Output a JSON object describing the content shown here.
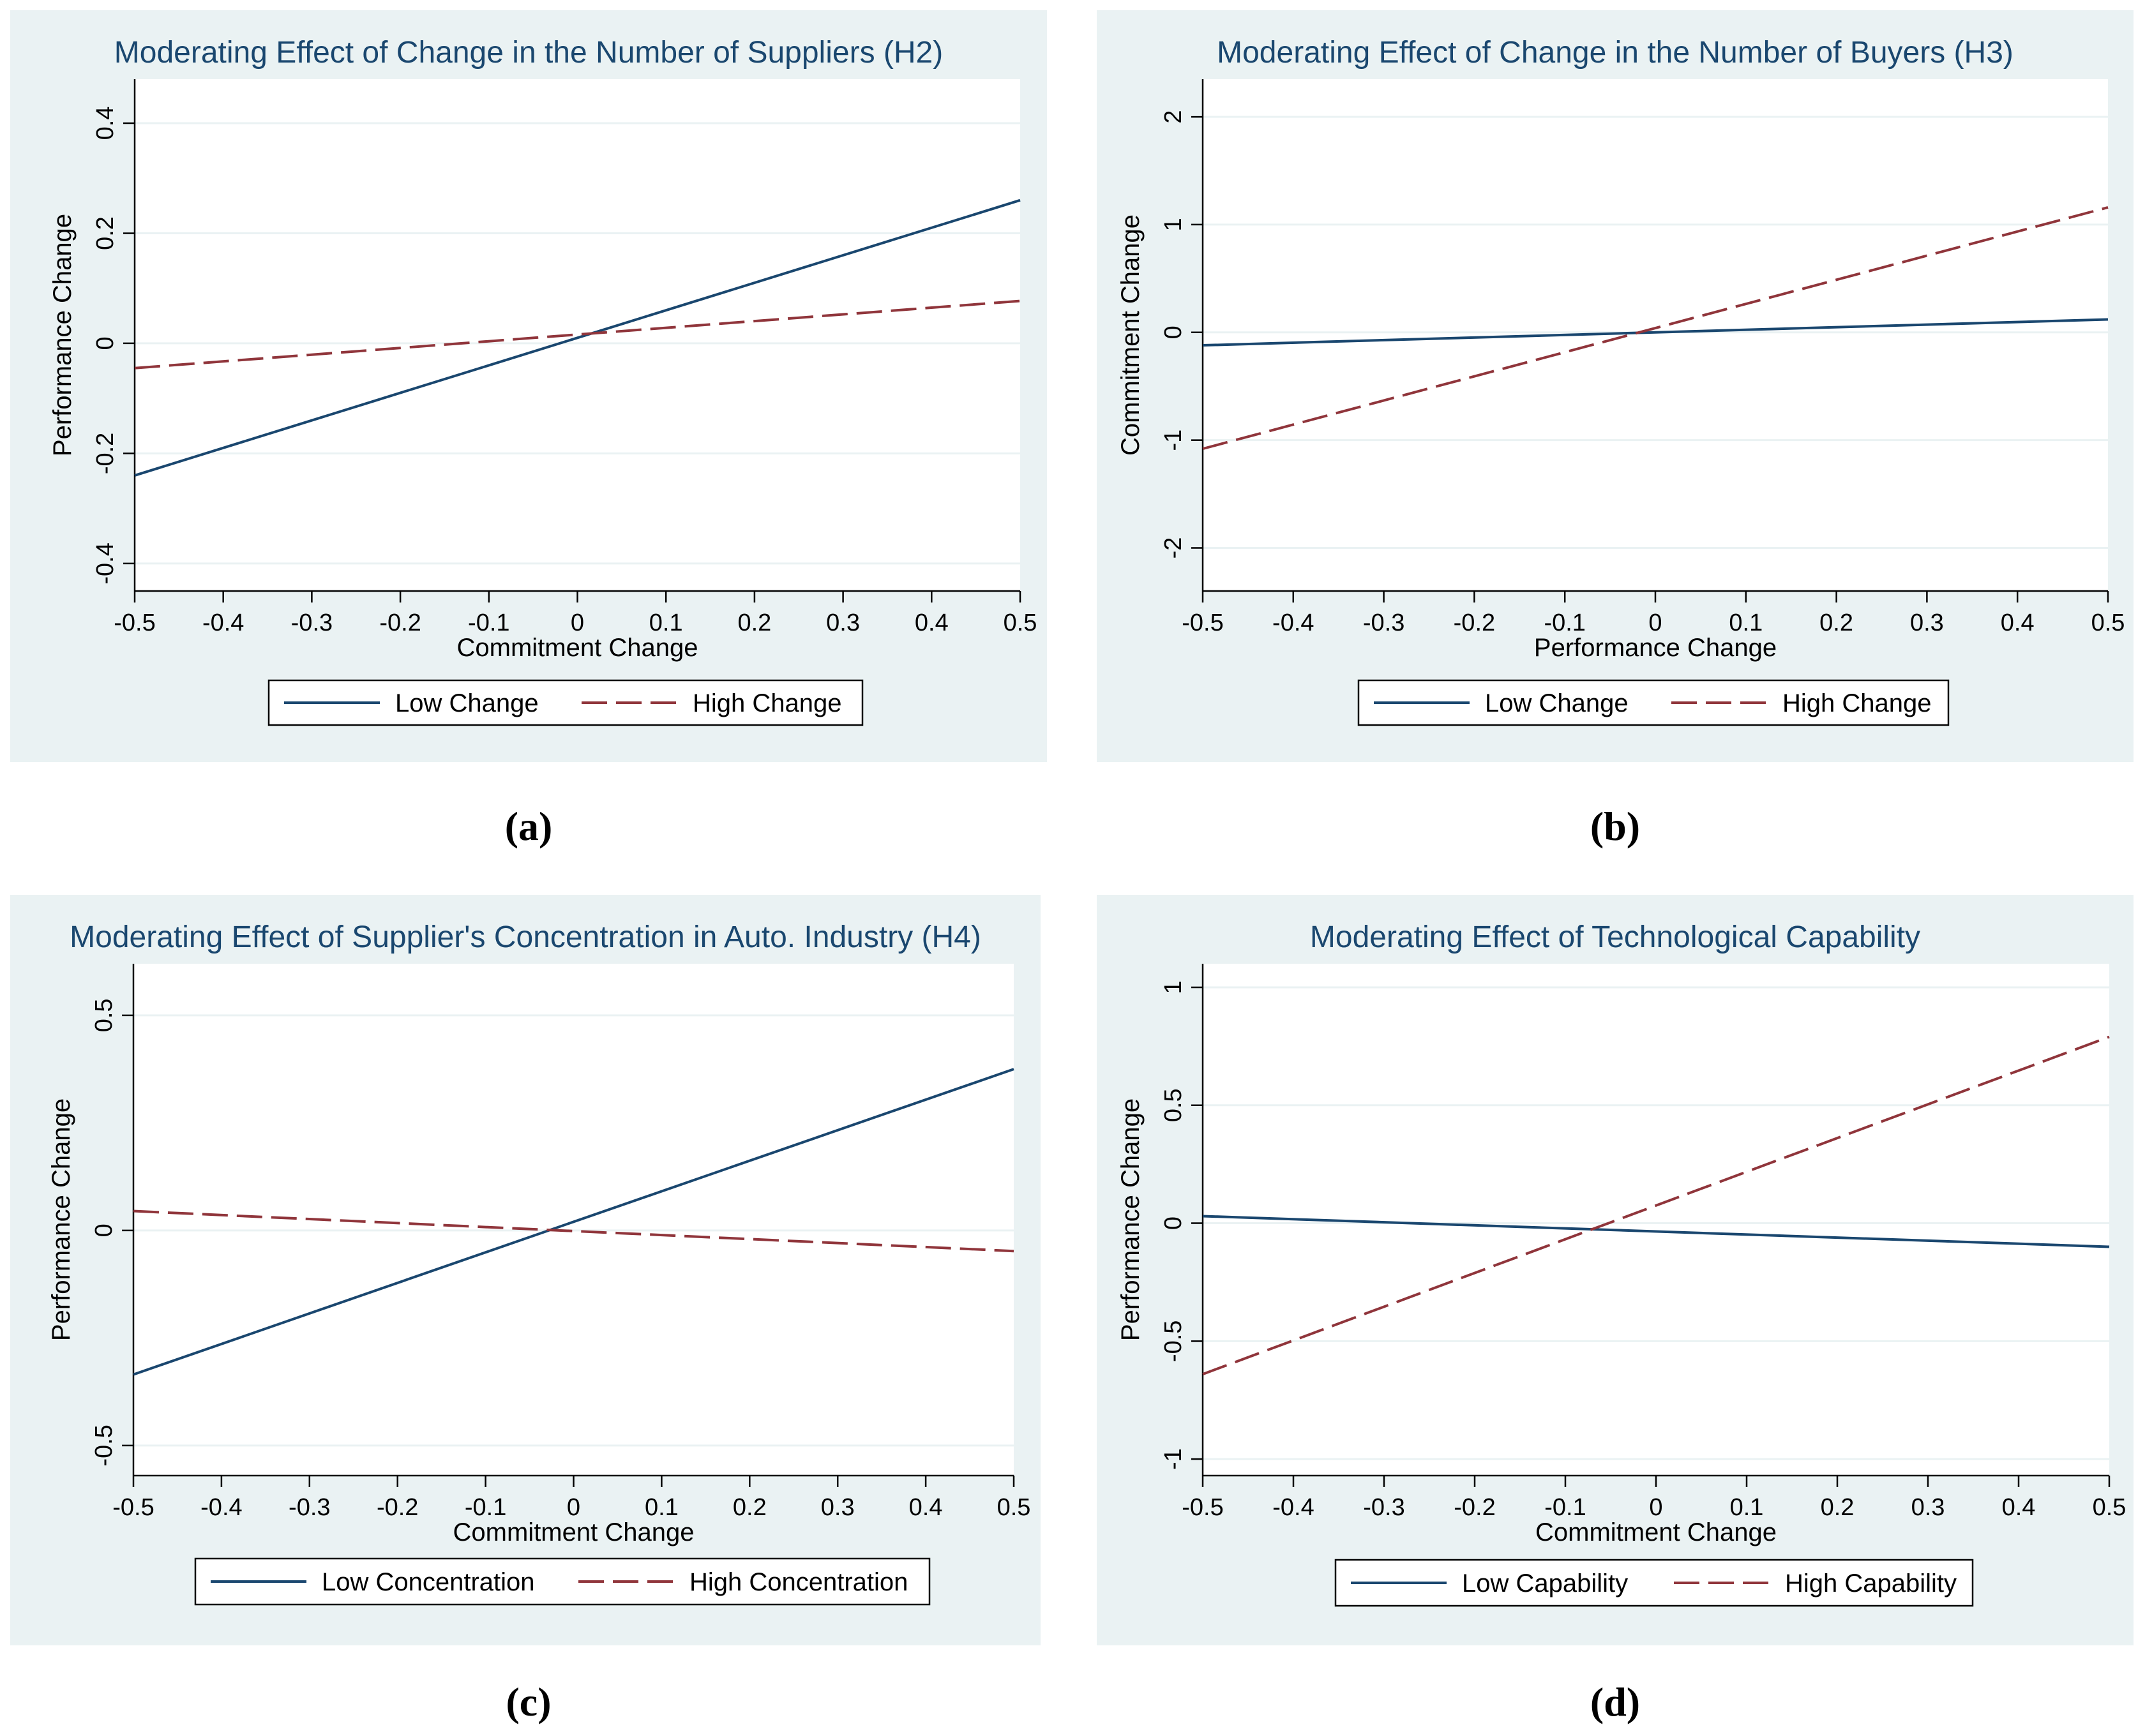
{
  "colors": {
    "background": "#eaf2f3",
    "plot": "#ffffff",
    "title": "#1a476f",
    "low": "#1a476f",
    "high": "#90353b",
    "grid": "#eaf2f3",
    "axis": "#000000"
  },
  "captions": [
    "(a)",
    "(b)",
    "(c)",
    "(d)"
  ],
  "chart_data": [
    {
      "type": "line",
      "title": "Moderating Effect of Change in the Number of Suppliers (H2)",
      "xlabel": "Commitment Change",
      "ylabel": "Performance Change",
      "xlim": [
        -0.5,
        0.5
      ],
      "ylim": [
        -0.45,
        0.48
      ],
      "xticks": [
        -0.5,
        -0.4,
        -0.3,
        -0.2,
        -0.1,
        0,
        0.1,
        0.2,
        0.3,
        0.4,
        0.5
      ],
      "xtick_labels": [
        "-0.5",
        "-0.4",
        "-0.3",
        "-0.2",
        "-0.1",
        "0",
        "0.1",
        "0.2",
        "0.3",
        "0.4",
        "0.5"
      ],
      "yticks": [
        -0.4,
        -0.2,
        0,
        0.2,
        0.4
      ],
      "ytick_labels": [
        "-0.4",
        "-0.2",
        "0",
        "0.2",
        "0.4"
      ],
      "x": [
        -0.5,
        0.5
      ],
      "series": [
        {
          "name": "Low Change",
          "style": "solid",
          "values": [
            -0.24,
            0.26
          ]
        },
        {
          "name": "High Change",
          "style": "dashed",
          "values": [
            -0.045,
            0.077
          ]
        }
      ],
      "legend": "bottom"
    },
    {
      "type": "line",
      "title": "Moderating Effect of Change in the Number of Buyers (H3)",
      "xlabel": "Performance Change",
      "ylabel": "Commitment Change",
      "xlim": [
        -0.5,
        0.5
      ],
      "ylim": [
        -2.4,
        2.35
      ],
      "xticks": [
        -0.5,
        -0.4,
        -0.3,
        -0.2,
        -0.1,
        0,
        0.1,
        0.2,
        0.3,
        0.4,
        0.5
      ],
      "xtick_labels": [
        "-0.5",
        "-0.4",
        "-0.3",
        "-0.2",
        "-0.1",
        "0",
        "0.1",
        "0.2",
        "0.3",
        "0.4",
        "0.5"
      ],
      "yticks": [
        -2,
        -1,
        0,
        1,
        2
      ],
      "ytick_labels": [
        "-2",
        "-1",
        "0",
        "1",
        "2"
      ],
      "x": [
        -0.5,
        0.5
      ],
      "series": [
        {
          "name": "Low Change",
          "style": "solid",
          "values": [
            -0.12,
            0.12
          ]
        },
        {
          "name": "High Change",
          "style": "dashed",
          "values": [
            -1.08,
            1.16
          ]
        }
      ],
      "legend": "bottom"
    },
    {
      "type": "line",
      "title": "Moderating Effect of Supplier's Concentration in Auto. Industry (H4)",
      "xlabel": "Commitment Change",
      "ylabel": "Performance Change",
      "xlim": [
        -0.5,
        0.5
      ],
      "ylim": [
        -0.57,
        0.62
      ],
      "xticks": [
        -0.5,
        -0.4,
        -0.3,
        -0.2,
        -0.1,
        0,
        0.1,
        0.2,
        0.3,
        0.4,
        0.5
      ],
      "xtick_labels": [
        "-0.5",
        "-0.4",
        "-0.3",
        "-0.2",
        "-0.1",
        "0",
        "0.1",
        "0.2",
        "0.3",
        "0.4",
        "0.5"
      ],
      "yticks": [
        -0.5,
        0,
        0.5
      ],
      "ytick_labels": [
        "-0.5",
        "0",
        "0.5"
      ],
      "x": [
        -0.5,
        0.5
      ],
      "series": [
        {
          "name": "Low Concentration",
          "style": "solid",
          "values": [
            -0.335,
            0.375
          ]
        },
        {
          "name": "High Concentration",
          "style": "dashed",
          "values": [
            0.045,
            -0.048
          ]
        }
      ],
      "legend": "bottom"
    },
    {
      "type": "line",
      "title": "Moderating Effect of Technological Capability",
      "xlabel": "Commitment Change",
      "ylabel": "Performance Change",
      "xlim": [
        -0.5,
        0.5
      ],
      "ylim": [
        -1.07,
        1.1
      ],
      "xticks": [
        -0.5,
        -0.4,
        -0.3,
        -0.2,
        -0.1,
        0,
        0.1,
        0.2,
        0.3,
        0.4,
        0.5
      ],
      "xtick_labels": [
        "-0.5",
        "-0.4",
        "-0.3",
        "-0.2",
        "-0.1",
        "0",
        "0.1",
        "0.2",
        "0.3",
        "0.4",
        "0.5"
      ],
      "yticks": [
        -1,
        -0.5,
        0,
        0.5,
        1
      ],
      "ytick_labels": [
        "-1",
        "-0.5",
        "0",
        "0.5",
        "1"
      ],
      "x": [
        -0.5,
        0.5
      ],
      "series": [
        {
          "name": "Low Capability",
          "style": "solid",
          "values": [
            0.03,
            -0.1
          ]
        },
        {
          "name": "High Capability",
          "style": "dashed",
          "values": [
            -0.64,
            0.79
          ]
        }
      ],
      "legend": "bottom"
    }
  ]
}
